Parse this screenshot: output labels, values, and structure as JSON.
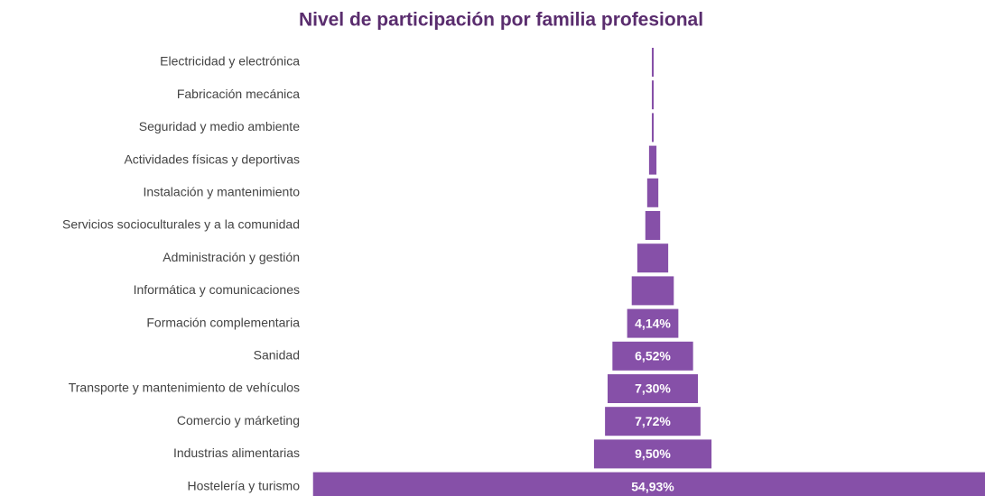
{
  "chart_data": {
    "type": "funnel",
    "title": "Nivel de participación por familia profesional",
    "categories": [
      "Electricidad y electrónica",
      "Fabricación mecánica",
      "Seguridad y medio ambiente",
      "Actividades físicas y deportivas",
      "Instalación y mantenimiento",
      "Servicios socioculturales y a la comunidad",
      "Administración y gestión",
      "Informática y comunicaciones",
      "Formación complementaria",
      "Sanidad",
      "Transporte y mantenimiento de vehículos",
      "Comercio y márketing",
      "Industrias alimentarias",
      "Hostelería y turismo"
    ],
    "values": [
      0.15,
      0.15,
      0.15,
      0.6,
      0.9,
      1.2,
      2.5,
      3.4,
      4.14,
      6.52,
      7.3,
      7.72,
      9.5,
      54.93
    ],
    "value_labels": [
      null,
      null,
      null,
      null,
      null,
      null,
      null,
      null,
      "4,14%",
      "6,52%",
      "7,30%",
      "7,72%",
      "9,50%",
      "54,93%"
    ],
    "color": "#8650a8"
  }
}
